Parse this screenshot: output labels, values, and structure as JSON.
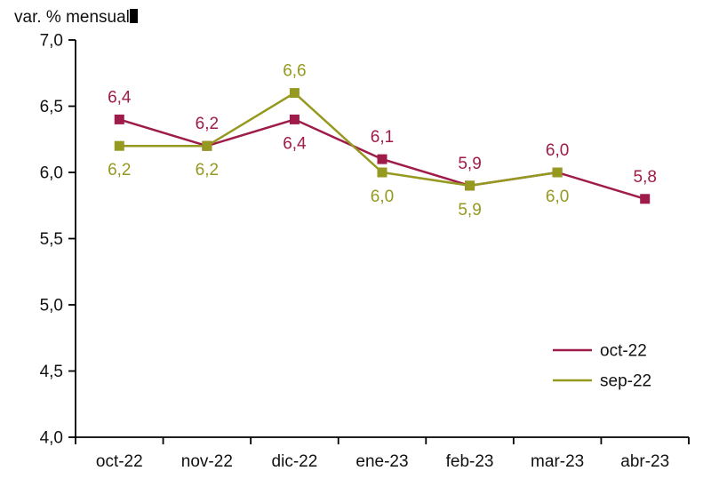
{
  "chart_data": {
    "type": "line",
    "title": "var. % mensual",
    "categories": [
      "oct-22",
      "nov-22",
      "dic-22",
      "ene-23",
      "feb-23",
      "mar-23",
      "abr-23"
    ],
    "series": [
      {
        "name": "oct-22",
        "color": "#9E1B4A",
        "values": [
          6.4,
          6.2,
          6.4,
          6.1,
          5.9,
          6.0,
          5.8
        ],
        "labels": [
          "6,4",
          "6,2",
          "6,4",
          "6,1",
          "5,9",
          "6,0",
          "5,8"
        ],
        "label_positions": [
          "above",
          "above",
          "below",
          "above",
          "above",
          "above",
          "above"
        ]
      },
      {
        "name": "sep-22",
        "color": "#95991F",
        "values": [
          6.2,
          6.2,
          6.6,
          6.0,
          5.9,
          6.0,
          null
        ],
        "labels": [
          "6,2",
          "6,2",
          "6,6",
          "6,0",
          "5,9",
          "6,0",
          ""
        ],
        "label_positions": [
          "below",
          "below",
          "above",
          "below",
          "below",
          "below",
          ""
        ]
      }
    ],
    "y_axis": {
      "min": 4.0,
      "max": 7.0,
      "step": 0.5,
      "tick_labels": [
        "4,0",
        "4,5",
        "5,0",
        "5,5",
        "6,0",
        "6,5",
        "7,0"
      ]
    },
    "x_axis": {
      "tick_labels": [
        "oct-22",
        "nov-22",
        "dic-22",
        "ene-23",
        "feb-23",
        "mar-23",
        "abr-23"
      ]
    },
    "legend": {
      "position": "bottom-right",
      "entries": [
        "oct-22",
        "sep-22"
      ]
    },
    "grid": false,
    "axis_color": "#000000",
    "text_color": "#111111"
  }
}
